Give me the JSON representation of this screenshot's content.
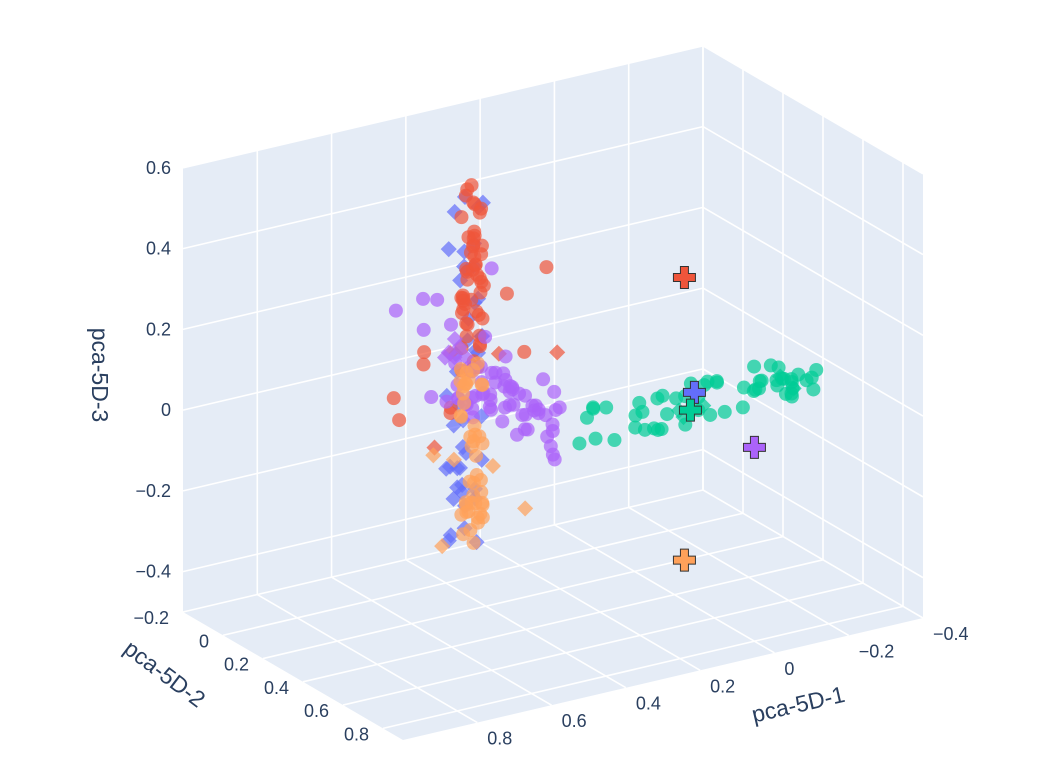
{
  "chart_data": {
    "type": "scatter",
    "projection": "3d",
    "title": "",
    "axes": {
      "x": {
        "label": "pca-5D-1",
        "range": [
          -0.4,
          1.0
        ],
        "ticks": [
          -0.4,
          -0.2,
          0,
          0.2,
          0.4,
          0.6,
          0.8
        ],
        "tick_labels": [
          "−0.4",
          "−0.2",
          "0",
          "0.2",
          "0.4",
          "0.6",
          "0.8"
        ]
      },
      "y": {
        "label": "pca-5D-2",
        "range": [
          -0.2,
          0.9
        ],
        "ticks": [
          -0.2,
          0,
          0.2,
          0.4,
          0.6,
          0.8
        ],
        "tick_labels": [
          "−0.2",
          "0",
          "0.2",
          "0.4",
          "0.6",
          "0.8"
        ]
      },
      "z": {
        "label": "pca-5D-3",
        "range": [
          -0.5,
          0.6
        ],
        "ticks": [
          -0.4,
          -0.2,
          0,
          0.2,
          0.4,
          0.6
        ],
        "tick_labels": [
          "−0.4",
          "−0.2",
          "0",
          "0.2",
          "0.4",
          "0.6"
        ]
      }
    },
    "scene_background": "#e5ecf6",
    "gridlines": true,
    "legend": "none",
    "series": [
      {
        "color": "#636efa",
        "clusters": [
          {
            "marker": "diamond",
            "x_range": [
              0.3,
              0.4
            ],
            "y_range": [
              -0.01,
              0.01
            ],
            "z_range": [
              -0.42,
              0.45
            ],
            "count": 45
          }
        ],
        "centroid": {
          "x": 0.0,
          "y": 0.5,
          "z": 0.03
        }
      },
      {
        "color": "#ef553b",
        "clusters": [
          {
            "marker": "circle",
            "x_range": [
              0.3,
              0.36
            ],
            "y_range": [
              -0.01,
              0.01
            ],
            "z_range": [
              0.0,
              0.48
            ],
            "count": 50
          },
          {
            "marker": "circle",
            "x_range": [
              0.05,
              0.6
            ],
            "y_range": [
              -0.01,
              0.01
            ],
            "z_range": [
              -0.1,
              0.25
            ],
            "count": 10
          },
          {
            "marker": "diamond",
            "x_range": [
              0.1,
              0.6
            ],
            "y_range": [
              -0.01,
              0.01
            ],
            "z_range": [
              -0.2,
              0.25
            ],
            "count": 4
          }
        ],
        "centroid": {
          "x": 0.0,
          "y": 0.45,
          "z": 0.3
        }
      },
      {
        "color": "#00cc96",
        "clusters": [
          {
            "marker": "circle",
            "x_range": [
              -0.32,
              0.3
            ],
            "y_range": [
              0.48,
              0.52
            ],
            "z_range": [
              -0.04,
              0.06
            ],
            "count": 55
          },
          {
            "marker": "diamond",
            "x_range": [
              -0.33,
              0.05
            ],
            "y_range": [
              0.48,
              0.52
            ],
            "z_range": [
              -0.03,
              0.02
            ],
            "count": 5
          }
        ],
        "centroid": {
          "x": 0.0,
          "y": 0.48,
          "z": -0.02
        }
      },
      {
        "color": "#ab63fa",
        "clusters": [
          {
            "marker": "circle",
            "x_range": [
              0.3,
              0.4
            ],
            "y_range": [
              0.0,
              0.5
            ],
            "z_range": [
              -0.06,
              0.08
            ],
            "count": 55
          },
          {
            "marker": "circle",
            "x_range": [
              0.25,
              0.55
            ],
            "y_range": [
              -0.01,
              0.01
            ],
            "z_range": [
              -0.3,
              0.3
            ],
            "count": 12
          },
          {
            "marker": "diamond",
            "x_range": [
              0.35,
              0.4
            ],
            "y_range": [
              -0.01,
              0.01
            ],
            "z_range": [
              0.05,
              0.1
            ],
            "count": 6
          }
        ],
        "centroid": {
          "x": 0.0,
          "y": 0.8,
          "z": -0.02
        }
      },
      {
        "color": "#ffa15a",
        "clusters": [
          {
            "marker": "circle",
            "x_range": [
              0.3,
              0.36
            ],
            "y_range": [
              -0.01,
              0.01
            ],
            "z_range": [
              -0.42,
              0.03
            ],
            "count": 45
          },
          {
            "marker": "diamond",
            "x_range": [
              0.15,
              0.45
            ],
            "y_range": [
              -0.01,
              0.01
            ],
            "z_range": [
              -0.42,
              -0.1
            ],
            "count": 5
          }
        ],
        "centroid": {
          "x": 0.0,
          "y": 0.45,
          "z": -0.4
        }
      }
    ],
    "centroid_marker": "cross"
  }
}
